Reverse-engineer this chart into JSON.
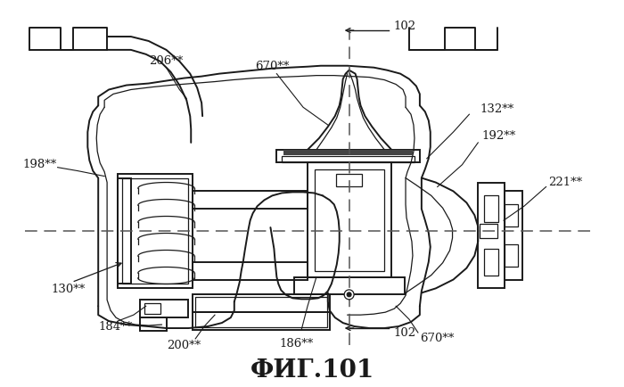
{
  "title": "ФИГ.101",
  "title_fontsize": 20,
  "title_bold": true,
  "background_color": "#ffffff",
  "line_color": "#1a1a1a",
  "dashed_line_color": "#555555",
  "figsize": [
    7.0,
    4.34
  ],
  "dpi": 100,
  "label_fontsize": 9.5
}
